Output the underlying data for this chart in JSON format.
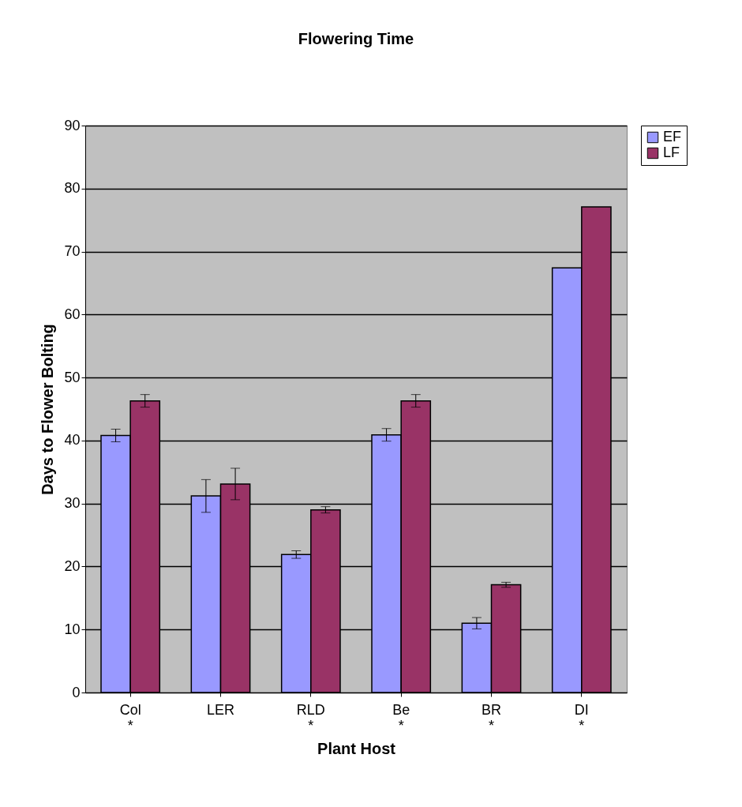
{
  "chart_data": {
    "type": "bar",
    "title": "Flowering Time",
    "xlabel": "Plant Host",
    "ylabel": "Days to Flower Bolting",
    "categories": [
      "Col\n*",
      "LER",
      "RLD\n*",
      "Be\n*",
      "BR\n*",
      "DI\n*"
    ],
    "series": [
      {
        "name": "EF",
        "color": "#9999ff",
        "values": [
          40.8,
          31.2,
          21.9,
          40.9,
          11.0,
          67.4
        ],
        "errors": [
          1.0,
          2.6,
          0.6,
          1.0,
          0.9,
          null
        ]
      },
      {
        "name": "LF",
        "color": "#993366",
        "values": [
          46.3,
          33.1,
          29.0,
          46.3,
          17.1,
          77.1
        ],
        "errors": [
          1.0,
          2.5,
          0.5,
          1.0,
          0.4,
          null
        ]
      }
    ],
    "ylim": [
      0,
      90
    ],
    "yticks": [
      0,
      10,
      20,
      30,
      40,
      50,
      60,
      70,
      80,
      90
    ],
    "grid": "y",
    "legend": "right"
  }
}
